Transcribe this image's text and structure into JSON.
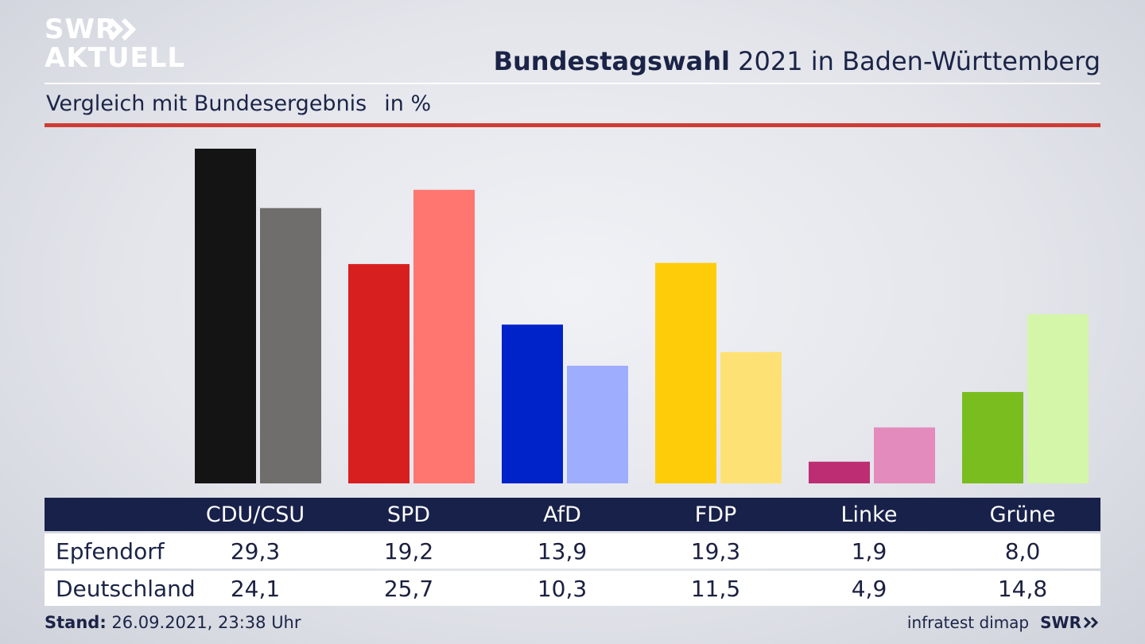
{
  "brand": {
    "line1": "SWR",
    "line2": "AKTUELL",
    "small": "SWR"
  },
  "title": {
    "bold": "Bundestagswahl",
    "rest": "2021 in Baden-Württemberg"
  },
  "subtitle": {
    "text": "Vergleich mit Bundesergebnis",
    "unit": "in %"
  },
  "colors": {
    "navy": "#18214a",
    "accent": "#cf3c33"
  },
  "chart_data": {
    "type": "bar",
    "categories": [
      "CDU/CSU",
      "SPD",
      "AfD",
      "FDP",
      "Linke",
      "Grüne"
    ],
    "series": [
      {
        "name": "Epfendorf",
        "values": [
          29.3,
          19.2,
          13.9,
          19.3,
          1.9,
          8.0
        ],
        "colors": [
          "#141414",
          "#d81f1f",
          "#0022c9",
          "#ffcc0a",
          "#bd2d74",
          "#79bd1f"
        ]
      },
      {
        "name": "Deutschland",
        "values": [
          24.1,
          25.7,
          10.3,
          11.5,
          4.9,
          14.8
        ],
        "colors": [
          "#706e6c",
          "#ff756f",
          "#9fadff",
          "#fee175",
          "#e38bbd",
          "#d3f6a8"
        ]
      }
    ],
    "display_values": [
      [
        "29,3",
        "19,2",
        "13,9",
        "19,3",
        "1,9",
        "8,0"
      ],
      [
        "24,1",
        "25,7",
        "10,3",
        "11,5",
        "4,9",
        "14,8"
      ]
    ],
    "ylim": [
      0,
      29.3
    ],
    "grid": false,
    "legend": "table below chart"
  },
  "footer": {
    "stand_label": "Stand:",
    "stand_value": "26.09.2021, 23:38 Uhr",
    "source": "infratest dimap"
  }
}
